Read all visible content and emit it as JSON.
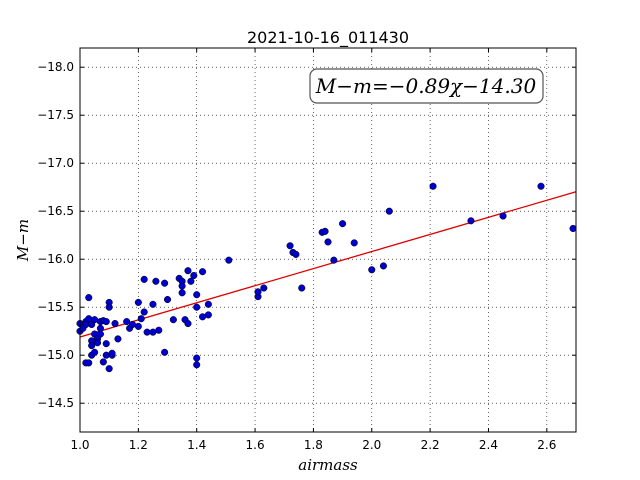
{
  "chart_data": {
    "type": "scatter",
    "title": "2021-10-16_011430",
    "xlabel": "airmass",
    "ylabel": "M−m",
    "xlim": [
      1.0,
      2.7
    ],
    "ylim": [
      -18.2,
      -14.2
    ],
    "y_inverted": true,
    "grid": true,
    "x_ticks": [
      "1.0",
      "1.2",
      "1.4",
      "1.6",
      "1.8",
      "2.0",
      "2.2",
      "2.4",
      "2.6"
    ],
    "y_ticks": [
      "−14.5",
      "−15.0",
      "−15.5",
      "−16.0",
      "−16.5",
      "−17.0",
      "−17.5",
      "−18.0"
    ],
    "annotation": "M−m=−0.89χ−14.30",
    "marker_color": "#0000cc",
    "fit_color": "#dd0000",
    "fit": {
      "slope": -0.89,
      "intercept": -14.3
    },
    "points": [
      [
        1.0,
        -15.25
      ],
      [
        1.0,
        -15.33
      ],
      [
        1.01,
        -15.28
      ],
      [
        1.02,
        -14.92
      ],
      [
        1.02,
        -15.35
      ],
      [
        1.02,
        -15.32
      ],
      [
        1.03,
        -15.38
      ],
      [
        1.03,
        -15.6
      ],
      [
        1.03,
        -14.92
      ],
      [
        1.04,
        -15.0
      ],
      [
        1.04,
        -15.32
      ],
      [
        1.04,
        -15.15
      ],
      [
        1.04,
        -15.1
      ],
      [
        1.05,
        -15.03
      ],
      [
        1.05,
        -15.22
      ],
      [
        1.05,
        -15.37
      ],
      [
        1.06,
        -15.17
      ],
      [
        1.06,
        -15.13
      ],
      [
        1.07,
        -15.22
      ],
      [
        1.07,
        -15.28
      ],
      [
        1.07,
        -15.35
      ],
      [
        1.08,
        -14.93
      ],
      [
        1.08,
        -15.36
      ],
      [
        1.09,
        -15.0
      ],
      [
        1.09,
        -15.12
      ],
      [
        1.09,
        -15.35
      ],
      [
        1.1,
        -14.86
      ],
      [
        1.1,
        -15.55
      ],
      [
        1.1,
        -15.5
      ],
      [
        1.11,
        -15.0
      ],
      [
        1.11,
        -15.02
      ],
      [
        1.12,
        -15.33
      ],
      [
        1.13,
        -15.17
      ],
      [
        1.16,
        -15.35
      ],
      [
        1.17,
        -15.28
      ],
      [
        1.18,
        -15.32
      ],
      [
        1.2,
        -15.3
      ],
      [
        1.2,
        -15.55
      ],
      [
        1.21,
        -15.38
      ],
      [
        1.22,
        -15.45
      ],
      [
        1.22,
        -15.79
      ],
      [
        1.23,
        -15.24
      ],
      [
        1.25,
        -15.24
      ],
      [
        1.25,
        -15.53
      ],
      [
        1.26,
        -15.77
      ],
      [
        1.27,
        -15.26
      ],
      [
        1.29,
        -15.03
      ],
      [
        1.29,
        -15.75
      ],
      [
        1.3,
        -15.58
      ],
      [
        1.32,
        -15.37
      ],
      [
        1.34,
        -15.8
      ],
      [
        1.35,
        -15.77
      ],
      [
        1.35,
        -15.72
      ],
      [
        1.35,
        -15.65
      ],
      [
        1.36,
        -15.37
      ],
      [
        1.37,
        -15.88
      ],
      [
        1.37,
        -15.33
      ],
      [
        1.38,
        -15.77
      ],
      [
        1.39,
        -15.83
      ],
      [
        1.4,
        -14.9
      ],
      [
        1.4,
        -14.97
      ],
      [
        1.4,
        -15.63
      ],
      [
        1.4,
        -15.5
      ],
      [
        1.42,
        -15.87
      ],
      [
        1.42,
        -15.4
      ],
      [
        1.44,
        -15.53
      ],
      [
        1.44,
        -15.42
      ],
      [
        1.51,
        -15.99
      ],
      [
        1.61,
        -15.61
      ],
      [
        1.61,
        -15.66
      ],
      [
        1.63,
        -15.7
      ],
      [
        1.72,
        -16.14
      ],
      [
        1.73,
        -16.07
      ],
      [
        1.74,
        -16.05
      ],
      [
        1.76,
        -15.7
      ],
      [
        1.83,
        -16.28
      ],
      [
        1.84,
        -16.29
      ],
      [
        1.85,
        -16.18
      ],
      [
        1.87,
        -15.99
      ],
      [
        1.9,
        -16.37
      ],
      [
        1.94,
        -16.17
      ],
      [
        2.0,
        -15.89
      ],
      [
        2.04,
        -15.93
      ],
      [
        2.06,
        -16.5
      ],
      [
        2.21,
        -16.76
      ],
      [
        2.34,
        -16.4
      ],
      [
        2.45,
        -16.45
      ],
      [
        2.58,
        -16.76
      ],
      [
        2.69,
        -16.32
      ]
    ]
  }
}
